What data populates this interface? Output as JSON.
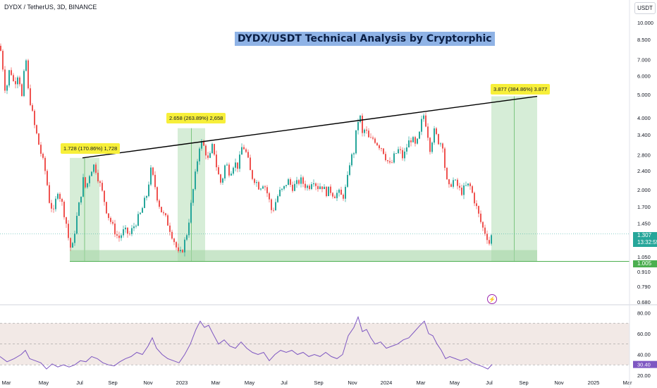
{
  "header": {
    "symbol_title": "DYDX / TetherUS, 3D, BINANCE",
    "currency": "USDT"
  },
  "banner": {
    "text": "DYDX/USDT Technical Analysis by Cryptorphic"
  },
  "measures": [
    {
      "text": "1.728 (170.86%) 1,728"
    },
    {
      "text": "2.658 (263.89%) 2,658"
    },
    {
      "text": "3.877 (384.86%) 3.877"
    }
  ],
  "price_badges": {
    "current_price": "1.307",
    "countdown": "13:32:55",
    "support": "1.005"
  },
  "colors": {
    "up": "#26a69a",
    "down": "#ef5350",
    "zone_fill": "#a5d6a7",
    "support_line": "#4caf50",
    "trendline": "#000000",
    "rsi_line": "#7e57c2",
    "rsi_band": "#e6d3ce",
    "price_badge": "#26a69a",
    "support_badge": "#4caf50"
  },
  "icons": {
    "event": "flash-icon"
  },
  "chart_data": [
    {
      "type": "candlestick",
      "y_scale": "log",
      "ylim": [
        0.68,
        11
      ],
      "grid": false,
      "y_ticks": [
        "10.000",
        "8.500",
        "7.000",
        "6.000",
        "5.000",
        "4.000",
        "3.400",
        "2.800",
        "2.400",
        "2.000",
        "1.700",
        "1.450",
        "1.050",
        "0.910",
        "0.790",
        "0.680"
      ],
      "x_ticks": [
        "Mar",
        "May",
        "Jul",
        "Sep",
        "Nov",
        "2023",
        "Mar",
        "May",
        "Jul",
        "Sep",
        "Nov",
        "2024",
        "Mar",
        "May",
        "Jul",
        "Sep",
        "Nov",
        "2025",
        "Mar"
      ],
      "path": [
        [
          0,
          8.0
        ],
        [
          8,
          5.0
        ],
        [
          14,
          6.5
        ],
        [
          20,
          5.5
        ],
        [
          26,
          6.2
        ],
        [
          32,
          4.6
        ],
        [
          36,
          7.5
        ],
        [
          40,
          5.2
        ],
        [
          48,
          3.8
        ],
        [
          56,
          3.0
        ],
        [
          64,
          2.4
        ],
        [
          70,
          1.8
        ],
        [
          76,
          1.6
        ],
        [
          82,
          2.0
        ],
        [
          88,
          1.75
        ],
        [
          94,
          1.45
        ],
        [
          98,
          1.2
        ],
        [
          102,
          1.1
        ],
        [
          106,
          1.35
        ],
        [
          110,
          1.6
        ],
        [
          114,
          1.85
        ],
        [
          118,
          2.2
        ],
        [
          122,
          2.0
        ],
        [
          128,
          2.4
        ],
        [
          134,
          2.55
        ],
        [
          140,
          2.2
        ],
        [
          146,
          1.9
        ],
        [
          152,
          1.6
        ],
        [
          160,
          1.4
        ],
        [
          168,
          1.25
        ],
        [
          176,
          1.35
        ],
        [
          184,
          1.3
        ],
        [
          192,
          1.45
        ],
        [
          200,
          1.6
        ],
        [
          208,
          1.9
        ],
        [
          214,
          2.4
        ],
        [
          218,
          2.2
        ],
        [
          224,
          1.8
        ],
        [
          230,
          1.6
        ],
        [
          236,
          1.5
        ],
        [
          242,
          1.35
        ],
        [
          248,
          1.2
        ],
        [
          254,
          1.05
        ],
        [
          260,
          1.15
        ],
        [
          266,
          1.35
        ],
        [
          272,
          1.8
        ],
        [
          278,
          2.4
        ],
        [
          284,
          3.2
        ],
        [
          290,
          3.0
        ],
        [
          296,
          2.6
        ],
        [
          302,
          3.1
        ],
        [
          308,
          2.4
        ],
        [
          314,
          2.1
        ],
        [
          320,
          2.6
        ],
        [
          326,
          2.35
        ],
        [
          332,
          2.6
        ],
        [
          338,
          2.5
        ],
        [
          344,
          3.1
        ],
        [
          350,
          2.8
        ],
        [
          356,
          2.3
        ],
        [
          362,
          2.2
        ],
        [
          368,
          2.05
        ],
        [
          374,
          2.15
        ],
        [
          380,
          1.9
        ],
        [
          386,
          1.6
        ],
        [
          390,
          1.75
        ],
        [
          396,
          1.95
        ],
        [
          402,
          2.0
        ],
        [
          408,
          2.2
        ],
        [
          414,
          2.05
        ],
        [
          420,
          2.1
        ],
        [
          426,
          2.2
        ],
        [
          432,
          2.1
        ],
        [
          438,
          2.05
        ],
        [
          444,
          2.25
        ],
        [
          450,
          2.05
        ],
        [
          456,
          2.1
        ],
        [
          462,
          1.95
        ],
        [
          468,
          2.0
        ],
        [
          474,
          1.9
        ],
        [
          480,
          1.95
        ],
        [
          486,
          1.85
        ],
        [
          492,
          2.1
        ],
        [
          496,
          2.6
        ],
        [
          502,
          2.9
        ],
        [
          506,
          3.6
        ],
        [
          510,
          4.2
        ],
        [
          514,
          3.4
        ],
        [
          518,
          3.6
        ],
        [
          524,
          3.2
        ],
        [
          530,
          3.3
        ],
        [
          536,
          3.1
        ],
        [
          542,
          3.0
        ],
        [
          548,
          2.7
        ],
        [
          554,
          2.5
        ],
        [
          560,
          2.8
        ],
        [
          566,
          2.95
        ],
        [
          572,
          2.7
        ],
        [
          578,
          3.1
        ],
        [
          584,
          3.3
        ],
        [
          590,
          3.0
        ],
        [
          596,
          3.5
        ],
        [
          600,
          4.2
        ],
        [
          604,
          3.8
        ],
        [
          610,
          3.0
        ],
        [
          616,
          3.5
        ],
        [
          622,
          3.2
        ],
        [
          628,
          3.1
        ],
        [
          632,
          2.3
        ],
        [
          636,
          2.0
        ],
        [
          642,
          2.2
        ],
        [
          648,
          2.1
        ],
        [
          654,
          1.95
        ],
        [
          660,
          2.05
        ],
        [
          666,
          2.1
        ],
        [
          672,
          1.85
        ],
        [
          678,
          1.6
        ],
        [
          684,
          1.4
        ],
        [
          690,
          1.3
        ],
        [
          694,
          1.2
        ],
        [
          698,
          1.307
        ]
      ]
    },
    {
      "type": "line",
      "name": "",
      "ylim": [
        20,
        85
      ],
      "y_ticks": [
        "80.00",
        "60.00",
        "40.00",
        "20.00"
      ],
      "bands": [
        30,
        50,
        70
      ],
      "current": "30.40",
      "path": [
        [
          0,
          38
        ],
        [
          10,
          33
        ],
        [
          20,
          36
        ],
        [
          30,
          40
        ],
        [
          36,
          44
        ],
        [
          42,
          36
        ],
        [
          50,
          34
        ],
        [
          58,
          32
        ],
        [
          66,
          26
        ],
        [
          74,
          31
        ],
        [
          82,
          28
        ],
        [
          90,
          30
        ],
        [
          98,
          28
        ],
        [
          106,
          30
        ],
        [
          114,
          34
        ],
        [
          122,
          33
        ],
        [
          130,
          38
        ],
        [
          138,
          36
        ],
        [
          146,
          32
        ],
        [
          154,
          30
        ],
        [
          162,
          29
        ],
        [
          170,
          33
        ],
        [
          178,
          36
        ],
        [
          186,
          38
        ],
        [
          194,
          42
        ],
        [
          202,
          40
        ],
        [
          210,
          48
        ],
        [
          216,
          56
        ],
        [
          222,
          46
        ],
        [
          230,
          40
        ],
        [
          238,
          36
        ],
        [
          246,
          34
        ],
        [
          254,
          32
        ],
        [
          262,
          40
        ],
        [
          270,
          50
        ],
        [
          278,
          64
        ],
        [
          284,
          72
        ],
        [
          290,
          66
        ],
        [
          296,
          68
        ],
        [
          302,
          60
        ],
        [
          310,
          50
        ],
        [
          318,
          54
        ],
        [
          326,
          48
        ],
        [
          334,
          46
        ],
        [
          342,
          52
        ],
        [
          350,
          46
        ],
        [
          358,
          42
        ],
        [
          366,
          40
        ],
        [
          374,
          42
        ],
        [
          382,
          34
        ],
        [
          390,
          40
        ],
        [
          398,
          44
        ],
        [
          406,
          42
        ],
        [
          414,
          44
        ],
        [
          422,
          40
        ],
        [
          430,
          42
        ],
        [
          438,
          38
        ],
        [
          446,
          40
        ],
        [
          454,
          38
        ],
        [
          462,
          42
        ],
        [
          470,
          38
        ],
        [
          478,
          36
        ],
        [
          486,
          40
        ],
        [
          494,
          58
        ],
        [
          502,
          66
        ],
        [
          508,
          76
        ],
        [
          514,
          62
        ],
        [
          520,
          64
        ],
        [
          526,
          56
        ],
        [
          532,
          50
        ],
        [
          540,
          52
        ],
        [
          548,
          46
        ],
        [
          556,
          48
        ],
        [
          564,
          50
        ],
        [
          572,
          54
        ],
        [
          580,
          56
        ],
        [
          588,
          62
        ],
        [
          596,
          68
        ],
        [
          602,
          72
        ],
        [
          608,
          60
        ],
        [
          614,
          58
        ],
        [
          620,
          50
        ],
        [
          626,
          44
        ],
        [
          632,
          36
        ],
        [
          638,
          38
        ],
        [
          646,
          36
        ],
        [
          654,
          34
        ],
        [
          662,
          36
        ],
        [
          670,
          32
        ],
        [
          678,
          30
        ],
        [
          686,
          28
        ],
        [
          692,
          26
        ],
        [
          698,
          30.4
        ]
      ]
    }
  ]
}
